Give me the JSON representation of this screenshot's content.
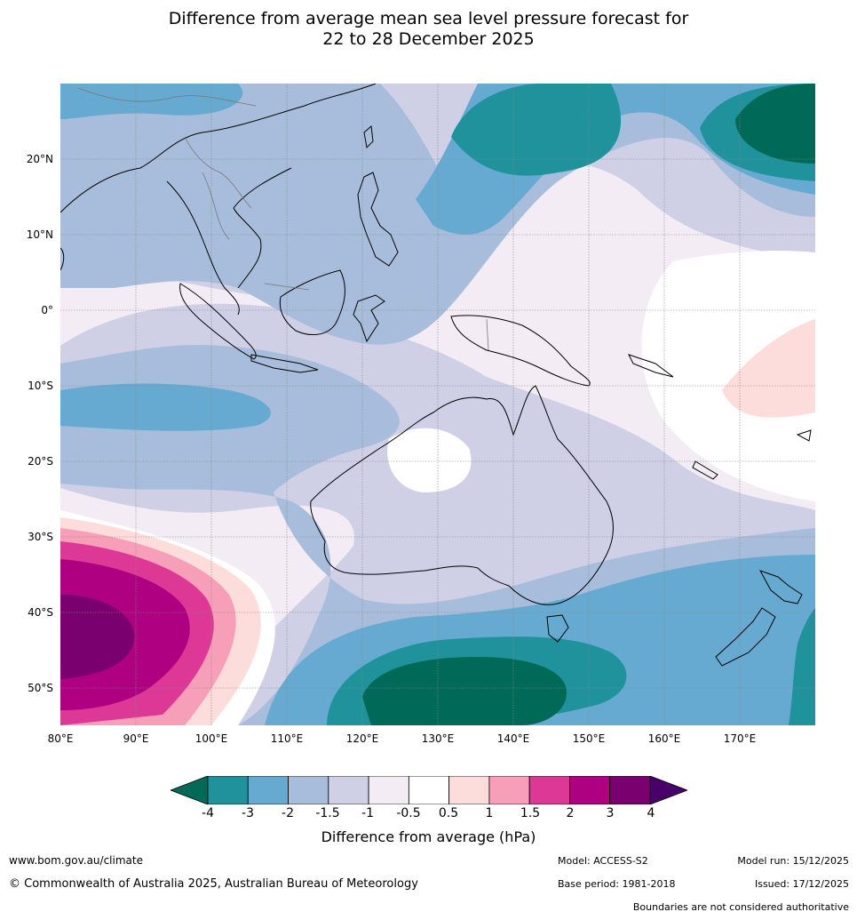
{
  "title": {
    "line1": "Difference from average mean sea level pressure forecast for",
    "line2": "22 to 28 December 2025"
  },
  "map": {
    "lat_labels": [
      "20°N",
      "10°N",
      "0°",
      "10°S",
      "20°S",
      "30°S",
      "40°S",
      "50°S"
    ],
    "lon_labels": [
      "80°E",
      "90°E",
      "100°E",
      "110°E",
      "120°E",
      "130°E",
      "140°E",
      "150°E",
      "160°E",
      "170°E"
    ],
    "lon_range": [
      80,
      180
    ],
    "lat_range": [
      -55,
      30
    ]
  },
  "colorbar": {
    "ticks": [
      "-4",
      "-3",
      "-2",
      "-1.5",
      "-1",
      "-0.5",
      "0.5",
      "1",
      "1.5",
      "2",
      "3",
      "4"
    ],
    "colors": [
      "#006957",
      "#1f929b",
      "#66aad1",
      "#a8bddb",
      "#cfcfe6",
      "#f3ecf4",
      "#ffffff",
      "#fddcdc",
      "#f79eb8",
      "#dd3896",
      "#ae0080",
      "#7a006f",
      "#49006a"
    ],
    "label": "Difference from average (hPa)"
  },
  "footer": {
    "website": "www.bom.gov.au/climate",
    "copyright": "© Commonwealth of Australia 2025, Australian Bureau of Meteorology",
    "model": "Model: ACCESS-S2",
    "base_period": "Base period: 1981-2018",
    "model_run": "Model run: 15/12/2025",
    "issued": "Issued: 17/12/2025",
    "disclaimer": "Boundaries are not considered authoritative"
  }
}
